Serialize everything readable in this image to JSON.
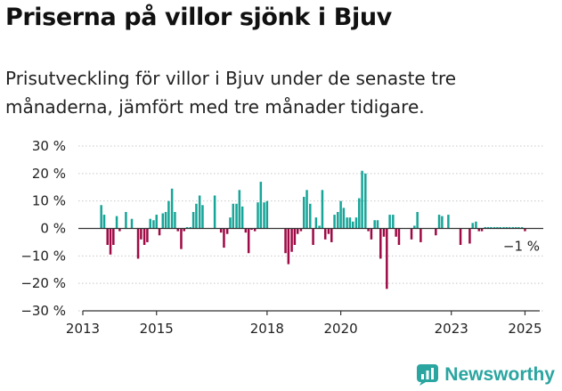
{
  "title": "Priserna på villor sjönk i Bjuv",
  "subtitle": "Prisutveckling för villor i Bjuv under de senaste tre månaderna, jämfört med tre månader tidigare.",
  "brand": "Newsworthy",
  "colors": {
    "positive": "#17a598",
    "negative": "#9e0a45",
    "axis": "#333333",
    "grid": "#c8c8c8",
    "brand": "#2aa5a0"
  },
  "chart_data": {
    "type": "bar",
    "title": "",
    "xlabel": "",
    "ylabel": "",
    "ylim": [
      -30,
      30
    ],
    "xlim": [
      2013.0,
      2025.4
    ],
    "y_ticks": [
      {
        "value": 30,
        "label": "30 %"
      },
      {
        "value": 20,
        "label": "20 %"
      },
      {
        "value": 10,
        "label": "10 %"
      },
      {
        "value": 0,
        "label": "0 %"
      },
      {
        "value": -10,
        "label": "−10 %"
      },
      {
        "value": -20,
        "label": "−20 %"
      },
      {
        "value": -30,
        "label": "−30 %"
      }
    ],
    "x_ticks": [
      {
        "value": 2013,
        "label": "2013"
      },
      {
        "value": 2015,
        "label": "2015"
      },
      {
        "value": 2018,
        "label": "2018"
      },
      {
        "value": 2020,
        "label": "2020"
      },
      {
        "value": 2023,
        "label": "2023"
      },
      {
        "value": 2025,
        "label": "2025"
      }
    ],
    "grid": true,
    "annotation": {
      "text": "−1 %",
      "x": 2025.0,
      "y": -1
    },
    "x": [
      2013.5,
      2013.58,
      2013.67,
      2013.75,
      2013.83,
      2013.92,
      2014.0,
      2014.17,
      2014.33,
      2014.5,
      2014.58,
      2014.67,
      2014.75,
      2014.83,
      2014.92,
      2015.0,
      2015.08,
      2015.17,
      2015.25,
      2015.33,
      2015.42,
      2015.5,
      2015.58,
      2015.67,
      2015.75,
      2015.83,
      2015.92,
      2016.0,
      2016.08,
      2016.17,
      2016.25,
      2016.58,
      2016.75,
      2016.83,
      2016.92,
      2017.0,
      2017.08,
      2017.17,
      2017.25,
      2017.33,
      2017.42,
      2017.5,
      2017.58,
      2017.67,
      2017.75,
      2017.83,
      2017.92,
      2018.0,
      2018.5,
      2018.58,
      2018.67,
      2018.75,
      2018.83,
      2018.92,
      2019.0,
      2019.08,
      2019.17,
      2019.25,
      2019.33,
      2019.42,
      2019.5,
      2019.58,
      2019.67,
      2019.75,
      2019.83,
      2019.92,
      2020.0,
      2020.08,
      2020.17,
      2020.25,
      2020.33,
      2020.42,
      2020.5,
      2020.58,
      2020.67,
      2020.75,
      2020.83,
      2020.92,
      2021.0,
      2021.08,
      2021.17,
      2021.25,
      2021.33,
      2021.42,
      2021.5,
      2021.58,
      2021.92,
      2022.0,
      2022.08,
      2022.17,
      2022.58,
      2022.67,
      2022.75,
      2022.92,
      2023.25,
      2023.5,
      2023.58,
      2023.67,
      2023.75,
      2023.83,
      2023.92,
      2024.0,
      2024.08,
      2024.17,
      2024.25,
      2024.33,
      2024.42,
      2024.5,
      2024.58,
      2024.67,
      2024.75,
      2024.83,
      2024.92,
      2025.0
    ],
    "values": [
      8.5,
      5.0,
      -6.0,
      -9.5,
      -6.0,
      4.5,
      -1.0,
      6.0,
      3.5,
      -11.0,
      -4.0,
      -6.0,
      -5.0,
      3.5,
      3.0,
      5.0,
      -2.5,
      5.5,
      6.0,
      10.0,
      14.5,
      6.0,
      -1.0,
      -7.5,
      -1.0,
      0.5,
      0.5,
      6.0,
      9.0,
      12.0,
      8.5,
      12.0,
      -1.5,
      -7.0,
      -2.0,
      4.0,
      9.0,
      9.0,
      14.0,
      8.0,
      -1.5,
      -9.0,
      -0.5,
      -1.0,
      9.5,
      17.0,
      9.5,
      10.0,
      -9.0,
      -13.0,
      -8.5,
      -6.0,
      -2.0,
      -1.0,
      11.5,
      14.0,
      9.0,
      -6.0,
      4.0,
      1.0,
      14.0,
      -4.0,
      -2.0,
      -5.0,
      5.0,
      6.0,
      10.0,
      7.5,
      4.0,
      4.0,
      2.5,
      4.0,
      11.0,
      21.0,
      20.0,
      -1.0,
      -4.0,
      3.0,
      3.0,
      -11.0,
      -3.0,
      -22.0,
      5.0,
      5.0,
      -3.0,
      -6.0,
      -4.0,
      1.0,
      6.0,
      -5.0,
      -2.5,
      5.0,
      4.5,
      5.0,
      -6.0,
      -5.5,
      2.0,
      2.5,
      -1.0,
      -1.0,
      0.5,
      0.5,
      0.5,
      0.5,
      0.5,
      0.5,
      0.5,
      0.5,
      0.5,
      0.5,
      0.5,
      0.5,
      0.5,
      -1.0
    ]
  }
}
